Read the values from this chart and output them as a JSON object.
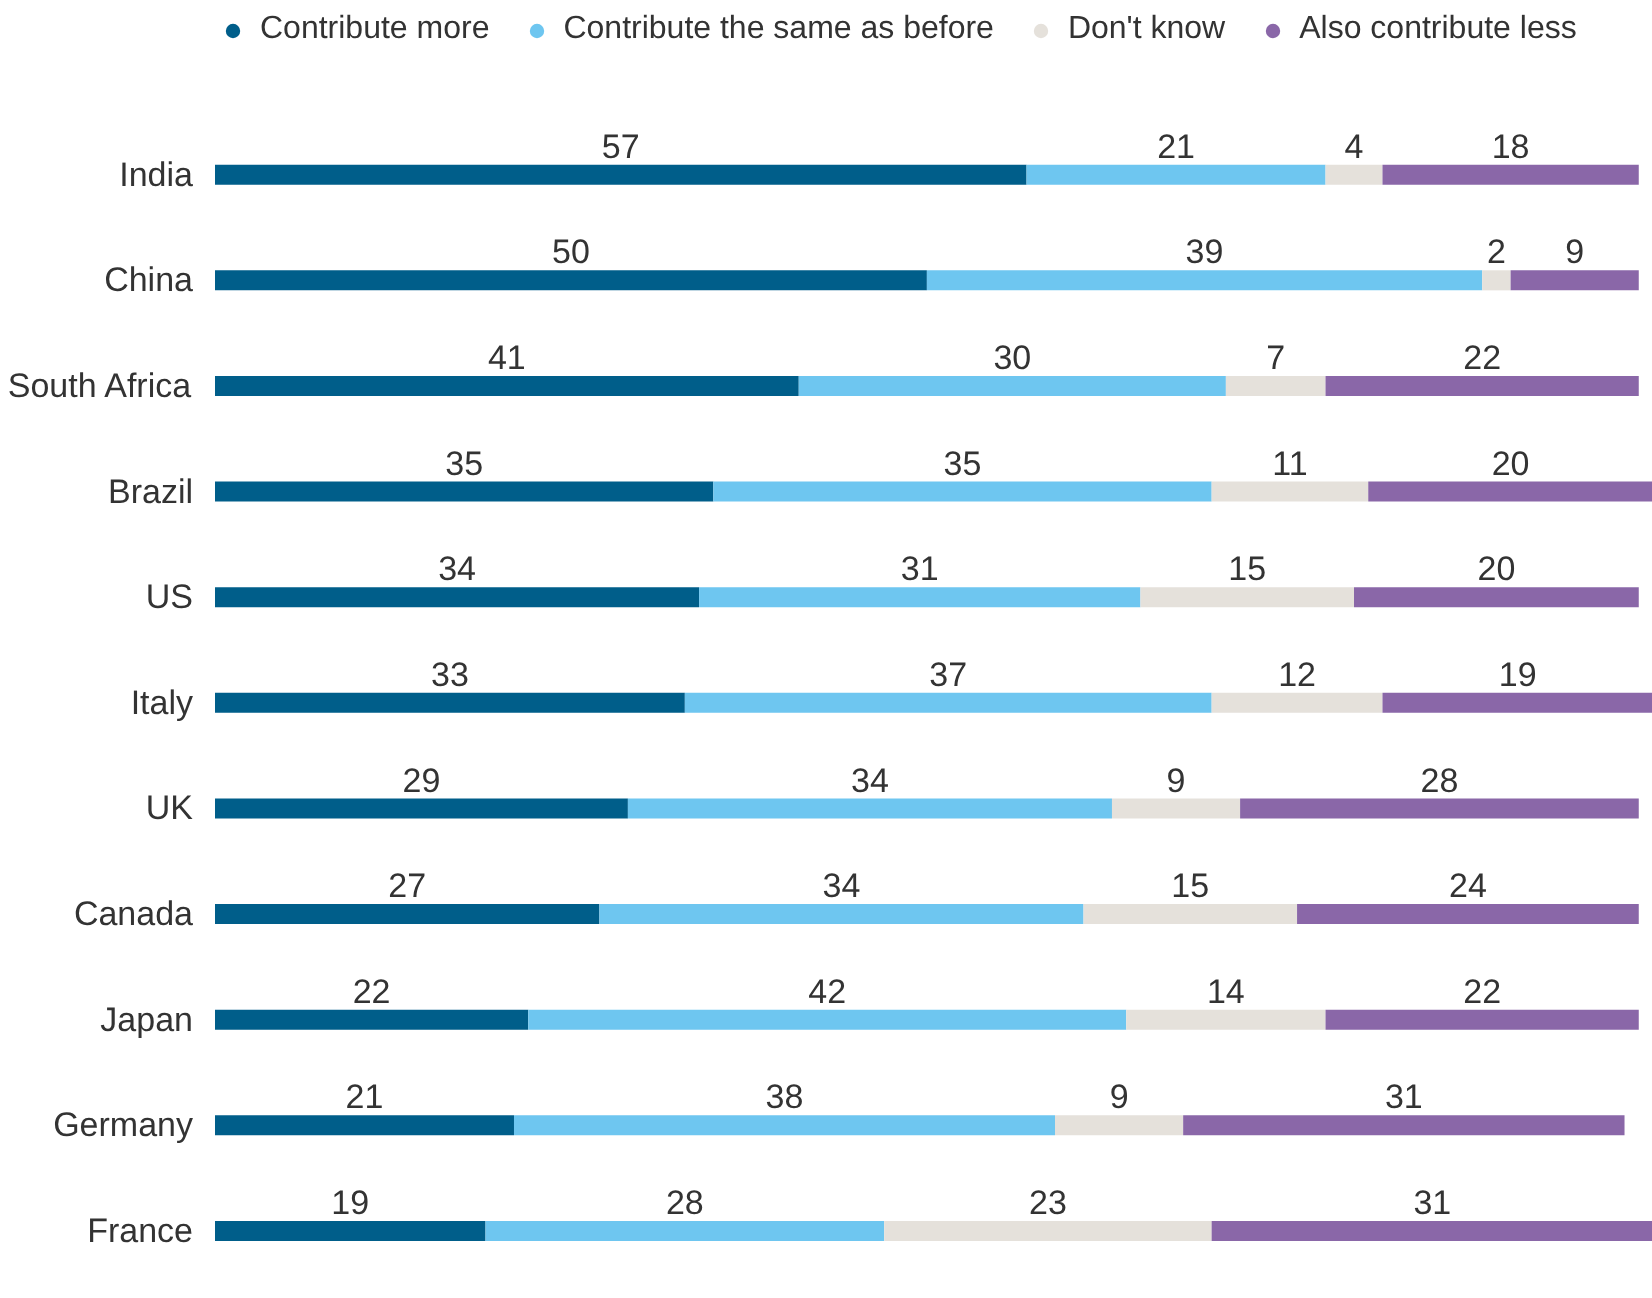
{
  "chart_data": {
    "type": "bar",
    "orientation": "horizontal",
    "stacked": true,
    "data_labels": true,
    "legend": "top",
    "tick_labels": "y",
    "grid": false,
    "xlim": [
      0,
      101
    ],
    "categories": [
      "India",
      "China",
      "South Africa",
      "Brazil",
      "US",
      "Italy",
      "UK",
      "Canada",
      "Japan",
      "Germany",
      "France"
    ],
    "series": [
      {
        "name": "Contribute more",
        "color": "#005e8a",
        "values": [
          57,
          50,
          41,
          35,
          34,
          33,
          29,
          27,
          22,
          21,
          19
        ]
      },
      {
        "name": "Contribute the same as before",
        "color": "#6ec6f0",
        "values": [
          21,
          39,
          30,
          35,
          31,
          37,
          34,
          34,
          42,
          38,
          28
        ]
      },
      {
        "name": "Don't know",
        "color": "#e5e1db",
        "values": [
          4,
          2,
          7,
          11,
          15,
          12,
          9,
          15,
          14,
          9,
          23
        ]
      },
      {
        "name": "Also contribute less",
        "color": "#8a67a8",
        "values": [
          18,
          9,
          22,
          20,
          20,
          19,
          28,
          24,
          22,
          31,
          31
        ]
      }
    ]
  }
}
